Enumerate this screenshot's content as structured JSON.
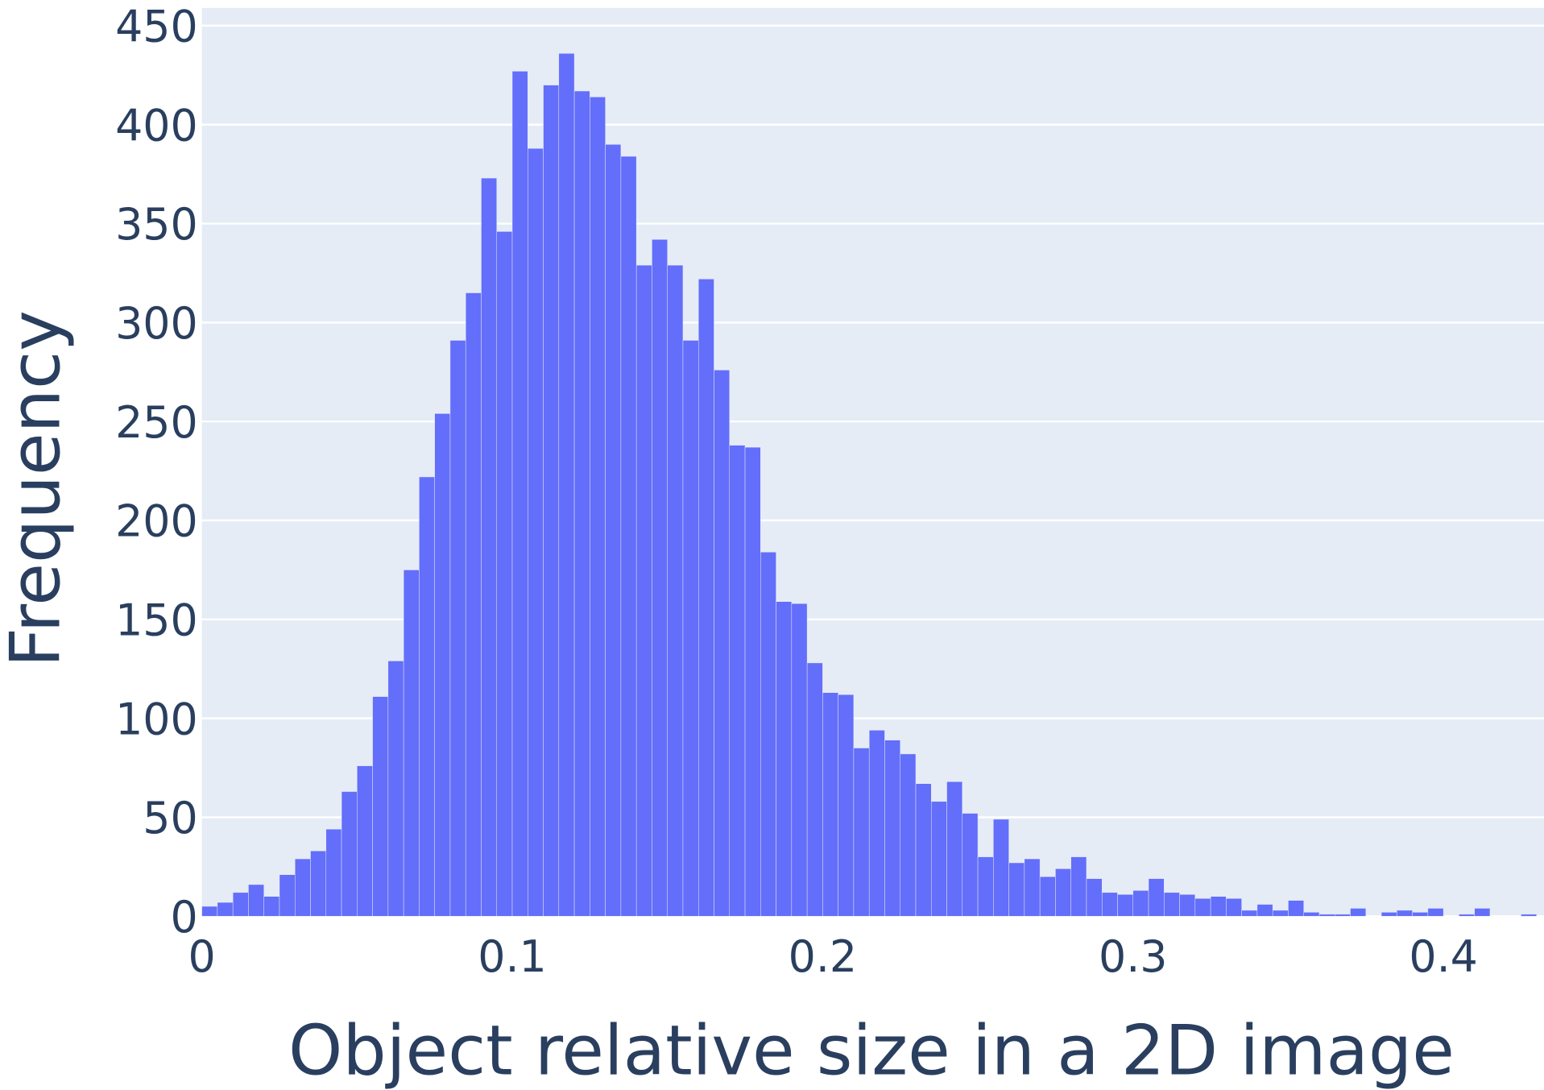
{
  "chart_data": {
    "type": "histogram",
    "xlabel": "Object relative size in a 2D image",
    "ylabel": "Frequency",
    "color": "#636efa",
    "bins": [
      0,
      0.005,
      0.01,
      0.015,
      0.02,
      0.025,
      0.03,
      0.035,
      0.04,
      0.045,
      0.05,
      0.055,
      0.06,
      0.065,
      0.07,
      0.075,
      0.08,
      0.085,
      0.09,
      0.095,
      0.1,
      0.105,
      0.11,
      0.115,
      0.12,
      0.125,
      0.13,
      0.135,
      0.14,
      0.145,
      0.15,
      0.155,
      0.16,
      0.165,
      0.17,
      0.175,
      0.18,
      0.185,
      0.19,
      0.195,
      0.2,
      0.205,
      0.21,
      0.215,
      0.22,
      0.225,
      0.23,
      0.235,
      0.24,
      0.245,
      0.25,
      0.255,
      0.26,
      0.265,
      0.27,
      0.275,
      0.28,
      0.285,
      0.29,
      0.295,
      0.3,
      0.305,
      0.31,
      0.315,
      0.32,
      0.325,
      0.33,
      0.335,
      0.34,
      0.345,
      0.35,
      0.355,
      0.36,
      0.365,
      0.37,
      0.375,
      0.38,
      0.385,
      0.39,
      0.395,
      0.4,
      0.405,
      0.41,
      0.415,
      0.42,
      0.425,
      0.43
    ],
    "counts": [
      5,
      7,
      12,
      16,
      10,
      21,
      29,
      33,
      44,
      63,
      76,
      111,
      129,
      175,
      222,
      254,
      291,
      315,
      373,
      346,
      427,
      388,
      420,
      436,
      417,
      414,
      390,
      384,
      329,
      342,
      329,
      291,
      322,
      276,
      238,
      237,
      184,
      159,
      158,
      128,
      113,
      112,
      85,
      94,
      89,
      82,
      67,
      58,
      68,
      52,
      30,
      49,
      27,
      29,
      20,
      24,
      30,
      19,
      12,
      11,
      13,
      19,
      12,
      11,
      9,
      10,
      9,
      3,
      6,
      3,
      8,
      2,
      1,
      1,
      4,
      0,
      2,
      3,
      2,
      4,
      0,
      1,
      4,
      0,
      0,
      1
    ],
    "xlim": [
      0,
      0.4324
    ],
    "xticks": [
      0,
      0.1,
      0.2,
      0.3,
      0.4
    ],
    "ylim": [
      0,
      459
    ],
    "yticks": [
      0,
      50,
      100,
      150,
      200,
      250,
      300,
      350,
      400,
      450
    ],
    "grid": true
  }
}
